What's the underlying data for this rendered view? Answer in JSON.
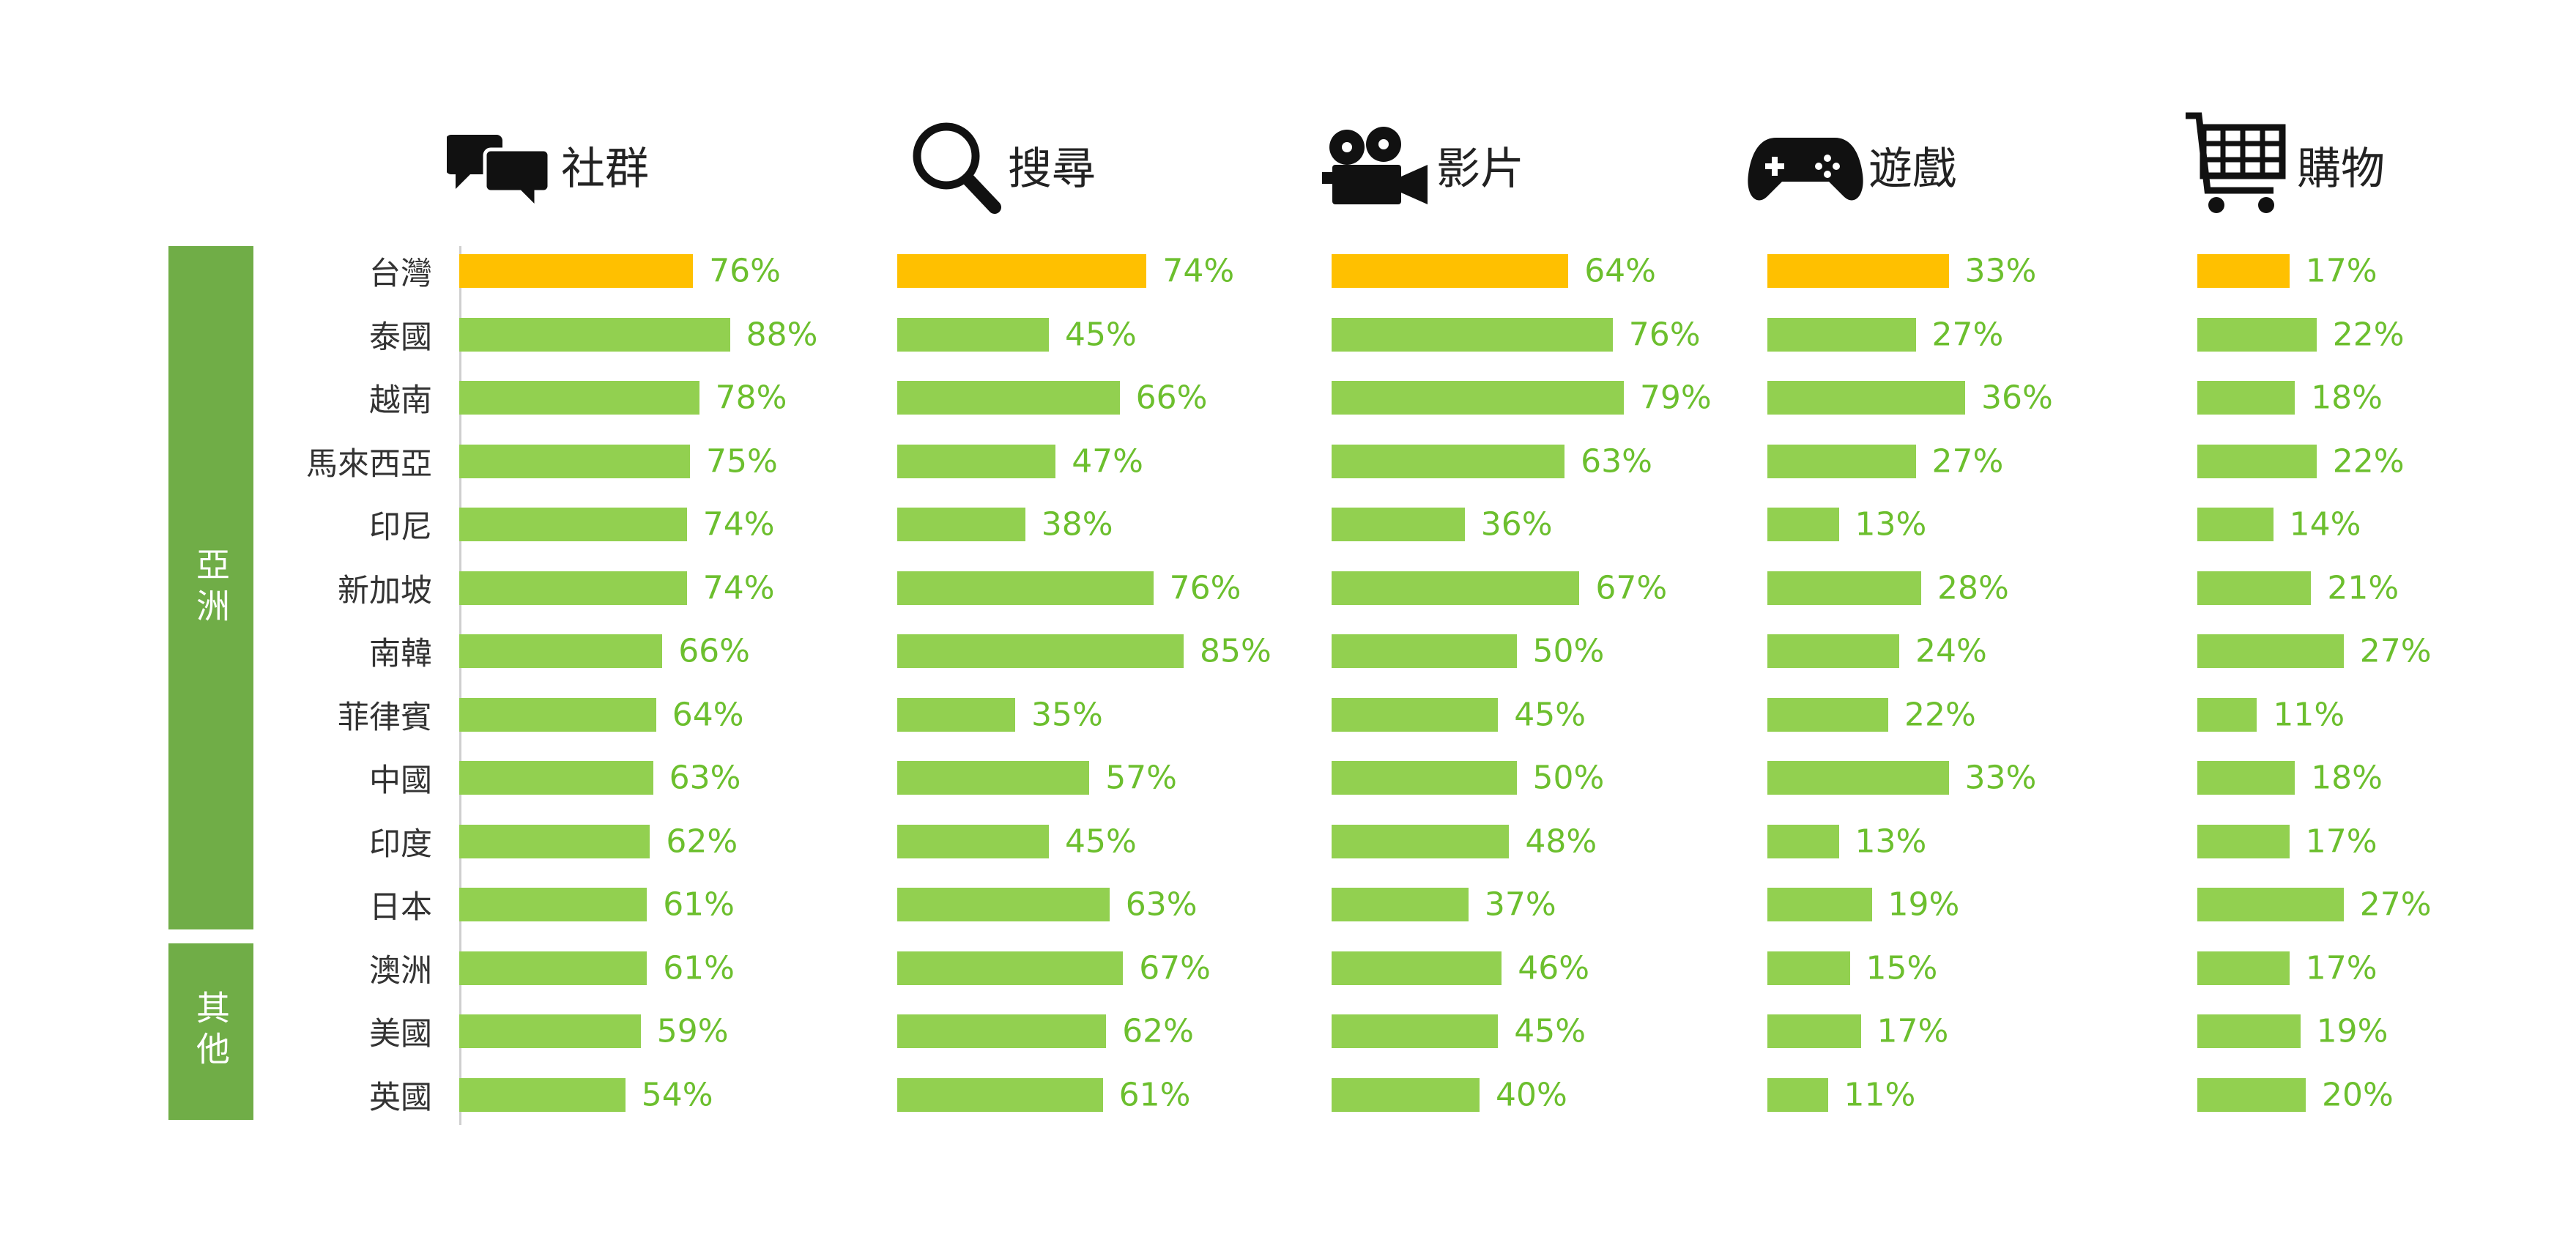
{
  "colors": {
    "highlight": "#ffc000",
    "bar": "#92d050",
    "label": "#6cbf2e",
    "region": "#70ad47",
    "axis": "#cfcfcf"
  },
  "regions": [
    {
      "label": "亞洲"
    },
    {
      "label": "其他"
    }
  ],
  "chart_data": {
    "type": "bar",
    "orientation": "horizontal",
    "grid": false,
    "highlight_category": "台灣",
    "categories": [
      "台灣",
      "泰國",
      "越南",
      "馬來西亞",
      "印尼",
      "新加坡",
      "南韓",
      "菲律賓",
      "中國",
      "印度",
      "日本",
      "澳洲",
      "美國",
      "英國"
    ],
    "category_groups": [
      {
        "label": "亞洲",
        "categories": [
          "台灣",
          "泰國",
          "越南",
          "馬來西亞",
          "印尼",
          "新加坡",
          "南韓",
          "菲律賓",
          "中國",
          "印度",
          "日本"
        ]
      },
      {
        "label": "其他",
        "categories": [
          "澳洲",
          "美國",
          "英國"
        ]
      }
    ],
    "unit": "%",
    "series": [
      {
        "name": "社群",
        "icon": "chat-bubbles-icon",
        "values": [
          76,
          88,
          78,
          75,
          74,
          74,
          66,
          64,
          63,
          62,
          61,
          61,
          59,
          54
        ]
      },
      {
        "name": "搜尋",
        "icon": "magnifier-icon",
        "values": [
          74,
          45,
          66,
          47,
          38,
          76,
          85,
          35,
          57,
          45,
          63,
          67,
          62,
          61
        ]
      },
      {
        "name": "影片",
        "icon": "film-camera-icon",
        "values": [
          64,
          76,
          79,
          63,
          36,
          67,
          50,
          45,
          50,
          48,
          37,
          46,
          45,
          40
        ]
      },
      {
        "name": "遊戲",
        "icon": "gamepad-icon",
        "values": [
          33,
          27,
          36,
          27,
          13,
          28,
          24,
          22,
          33,
          13,
          19,
          15,
          17,
          11
        ]
      },
      {
        "name": "購物",
        "icon": "shopping-cart-icon",
        "values": [
          17,
          22,
          18,
          22,
          14,
          21,
          27,
          11,
          18,
          17,
          27,
          17,
          19,
          20
        ]
      }
    ]
  }
}
